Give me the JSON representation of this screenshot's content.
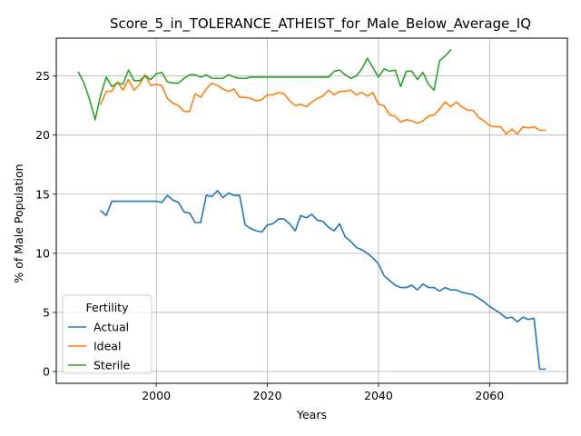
{
  "chart_data": {
    "type": "line",
    "title": "Score_5_in_TOLERANCE_ATHEIST_for_Male_Below_Average_IQ",
    "xlabel": "Years",
    "ylabel": "% of Male Population",
    "xlim": [
      1982,
      2074
    ],
    "ylim": [
      -1,
      28.2
    ],
    "xticks": [
      2000,
      2020,
      2040,
      2060
    ],
    "yticks": [
      0,
      5,
      10,
      15,
      20,
      25
    ],
    "grid": true,
    "legend": {
      "title": "Fertility",
      "placement": "lower-left"
    },
    "series": [
      {
        "name": "Actual",
        "color": "#1f77b4",
        "x": [
          1990,
          1991,
          1992,
          1993,
          1994,
          1995,
          1996,
          1997,
          1998,
          1999,
          2000,
          2001,
          2002,
          2003,
          2004,
          2005,
          2006,
          2007,
          2008,
          2009,
          2010,
          2011,
          2012,
          2013,
          2014,
          2015,
          2016,
          2017,
          2018,
          2019,
          2020,
          2021,
          2022,
          2023,
          2024,
          2025,
          2026,
          2027,
          2028,
          2029,
          2030,
          2031,
          2032,
          2033,
          2034,
          2035,
          2036,
          2037,
          2038,
          2039,
          2040,
          2041,
          2042,
          2043,
          2044,
          2045,
          2046,
          2047,
          2048,
          2049,
          2050,
          2051,
          2052,
          2053,
          2054,
          2055,
          2056,
          2057,
          2058,
          2059,
          2060,
          2061,
          2062,
          2063,
          2064,
          2065,
          2066,
          2067,
          2068,
          2069,
          2070
        ],
        "y": [
          13.6,
          13.2,
          14.4,
          14.4,
          14.4,
          14.4,
          14.4,
          14.4,
          14.4,
          14.4,
          14.4,
          14.3,
          14.9,
          14.5,
          14.3,
          13.5,
          13.4,
          12.6,
          12.6,
          14.9,
          14.8,
          15.3,
          14.7,
          15.1,
          14.9,
          14.9,
          12.4,
          12.1,
          11.9,
          11.8,
          12.4,
          12.5,
          12.9,
          12.9,
          12.5,
          11.9,
          13.2,
          13.0,
          13.3,
          12.8,
          12.7,
          12.2,
          11.9,
          12.5,
          11.4,
          11.0,
          10.5,
          10.3,
          10.0,
          9.6,
          9.1,
          8.1,
          7.7,
          7.3,
          7.1,
          7.1,
          7.3,
          6.9,
          7.4,
          7.1,
          7.1,
          6.8,
          7.1,
          6.9,
          6.9,
          6.7,
          6.6,
          6.5,
          6.2,
          5.9,
          5.5,
          5.2,
          4.9,
          4.5,
          4.6,
          4.2,
          4.6,
          4.4,
          4.5,
          0.2,
          0.2
        ]
      },
      {
        "name": "Ideal",
        "color": "#ff7f0e",
        "x": [
          1990,
          1991,
          1992,
          1993,
          1994,
          1995,
          1996,
          1997,
          1998,
          1999,
          2000,
          2001,
          2002,
          2003,
          2004,
          2005,
          2006,
          2007,
          2008,
          2009,
          2010,
          2011,
          2012,
          2013,
          2014,
          2015,
          2016,
          2017,
          2018,
          2019,
          2020,
          2021,
          2022,
          2023,
          2024,
          2025,
          2026,
          2027,
          2028,
          2029,
          2030,
          2031,
          2032,
          2033,
          2034,
          2035,
          2036,
          2037,
          2038,
          2039,
          2040,
          2041,
          2042,
          2043,
          2044,
          2045,
          2046,
          2047,
          2048,
          2049,
          2050,
          2051,
          2052,
          2053,
          2054,
          2055,
          2056,
          2057,
          2058,
          2059,
          2060,
          2061,
          2062,
          2063,
          2064,
          2065,
          2066,
          2067,
          2068,
          2069,
          2070
        ],
        "y": [
          22.6,
          23.7,
          23.7,
          24.5,
          23.8,
          24.7,
          23.8,
          24.3,
          25.1,
          24.2,
          24.3,
          24.2,
          23.1,
          22.7,
          22.5,
          22.0,
          22.0,
          23.5,
          23.2,
          23.9,
          24.4,
          24.2,
          23.9,
          23.7,
          23.9,
          23.2,
          23.2,
          23.1,
          22.9,
          23.0,
          23.4,
          23.4,
          23.6,
          23.5,
          22.9,
          22.5,
          22.6,
          22.4,
          22.8,
          23.1,
          23.3,
          23.8,
          23.4,
          23.7,
          23.7,
          23.8,
          23.4,
          23.6,
          23.3,
          23.6,
          22.6,
          22.5,
          21.7,
          21.6,
          21.1,
          21.3,
          21.2,
          21.0,
          21.2,
          21.6,
          21.7,
          22.2,
          22.8,
          22.4,
          22.8,
          22.4,
          22.1,
          22.1,
          21.5,
          21.2,
          20.8,
          20.7,
          20.7,
          20.1,
          20.5,
          20.1,
          20.7,
          20.6,
          20.7,
          20.4,
          20.4
        ]
      },
      {
        "name": "Sterile",
        "color": "#2ca02c",
        "x": [
          1986,
          1987,
          1988,
          1989,
          1990,
          1991,
          1992,
          1993,
          1994,
          1995,
          1996,
          1997,
          1998,
          1999,
          2000,
          2001,
          2002,
          2003,
          2004,
          2005,
          2006,
          2007,
          2008,
          2009,
          2010,
          2011,
          2012,
          2013,
          2014,
          2015,
          2016,
          2017,
          2018,
          2019,
          2020,
          2021,
          2022,
          2023,
          2024,
          2025,
          2026,
          2027,
          2028,
          2029,
          2030,
          2031,
          2032,
          2033,
          2034,
          2035,
          2036,
          2037,
          2038,
          2039,
          2040,
          2041,
          2042,
          2043,
          2044,
          2045,
          2046,
          2047,
          2048,
          2049,
          2050,
          2051,
          2052,
          2053
        ],
        "y": [
          25.3,
          24.4,
          23.0,
          21.3,
          23.4,
          24.9,
          24.1,
          24.4,
          24.3,
          25.5,
          24.6,
          24.6,
          25.0,
          24.7,
          25.2,
          25.3,
          24.5,
          24.4,
          24.4,
          24.8,
          25.1,
          25.1,
          24.9,
          25.1,
          24.8,
          24.8,
          24.8,
          25.1,
          24.9,
          24.8,
          24.8,
          24.9,
          24.9,
          24.9,
          24.9,
          24.9,
          24.9,
          24.9,
          24.9,
          24.9,
          24.9,
          24.9,
          24.9,
          24.9,
          24.9,
          24.9,
          25.4,
          25.5,
          25.1,
          24.8,
          25.0,
          25.6,
          26.5,
          25.7,
          24.9,
          25.6,
          25.4,
          25.5,
          24.1,
          25.4,
          25.4,
          24.7,
          25.3,
          24.3,
          23.8,
          26.3,
          26.7,
          27.2
        ]
      }
    ]
  }
}
